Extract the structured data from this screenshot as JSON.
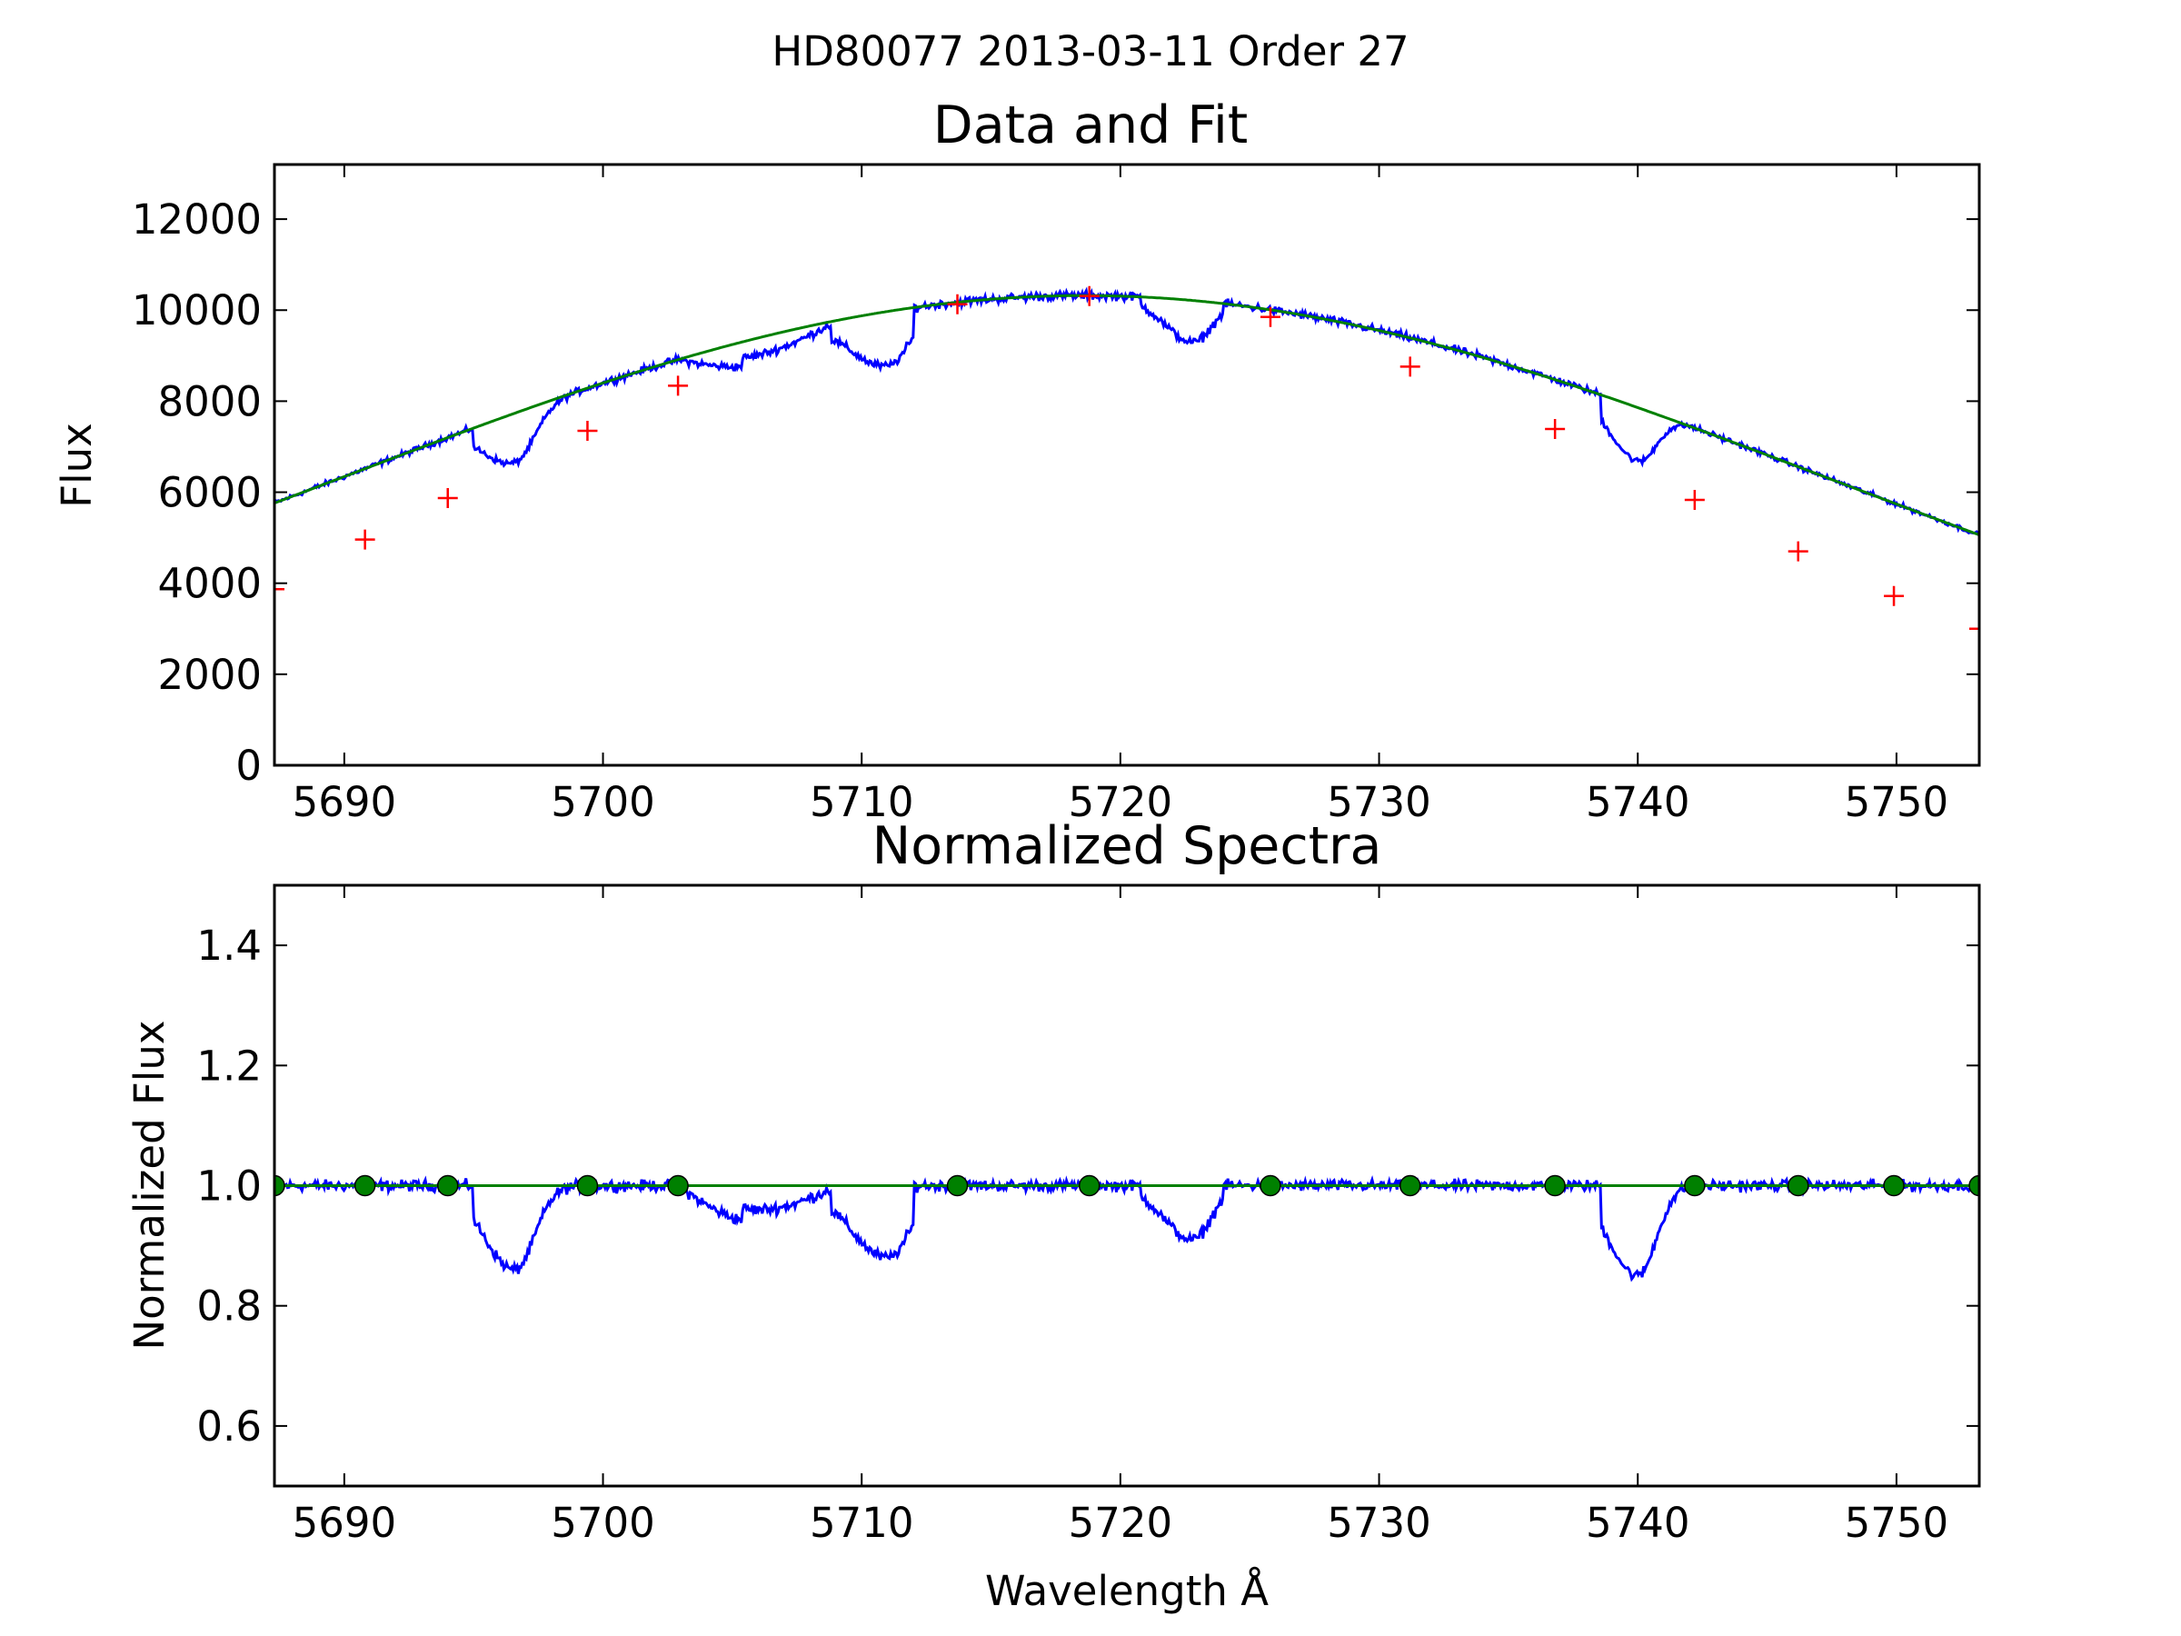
{
  "suptitle": "HD80077 2013-03-11 Order 27",
  "colors": {
    "data": "#0000ff",
    "fit": "#008000",
    "marker": "#ff0000",
    "point_fill": "#008000"
  },
  "chart_data": [
    {
      "type": "line",
      "title": "Data and Fit",
      "xlabel": "",
      "ylabel": "Flux",
      "xlim": [
        5687.3,
        5753.2
      ],
      "ylim": [
        0,
        13200
      ],
      "xticks": [
        5690,
        5700,
        5710,
        5720,
        5730,
        5740,
        5750
      ],
      "yticks": [
        0,
        2000,
        4000,
        6000,
        8000,
        10000,
        12000
      ],
      "grid": false,
      "fit_peak": {
        "x": 5718.6,
        "y": 10320
      },
      "absorption_lines": [
        {
          "center": 5696.6,
          "width": 0.75,
          "depth": 0.14,
          "left_extent": 1.6,
          "right_extent": 3.0
        },
        {
          "center": 5711.0,
          "width": 0.9,
          "depth": 0.12,
          "left_extent": 2.2,
          "right_extent": 1.0
        },
        {
          "center": 5722.8,
          "width": 0.7,
          "depth": 0.09,
          "left_extent": 2.0,
          "right_extent": 1.2
        },
        {
          "center": 5740.0,
          "width": 0.7,
          "depth": 0.15,
          "left_extent": 1.4,
          "right_extent": 1.8
        }
      ],
      "broad_depression": {
        "from": 5702.9,
        "to": 5710.0,
        "depth": 0.05
      },
      "series": [
        {
          "name": "data",
          "kind": "line"
        },
        {
          "name": "fit",
          "kind": "line"
        },
        {
          "name": "continuum points",
          "kind": "markers",
          "marker": "+",
          "x": [
            5687.3,
            5690.8,
            5694.0,
            5699.4,
            5702.9,
            5713.7,
            5718.8,
            5725.8,
            5731.2,
            5736.8,
            5742.2,
            5746.2,
            5749.9,
            5753.2
          ],
          "y": [
            3870,
            4960,
            5870,
            7350,
            8340,
            10130,
            10310,
            9850,
            8760,
            7390,
            5830,
            4700,
            3720,
            3000
          ]
        }
      ]
    },
    {
      "type": "line",
      "title": "Normalized Spectra",
      "xlabel": "Wavelength Å",
      "ylabel": "Normalized Flux",
      "xlim": [
        5687.3,
        5753.2
      ],
      "ylim": [
        0.5,
        1.5
      ],
      "xticks": [
        5690,
        5700,
        5710,
        5720,
        5730,
        5740,
        5750
      ],
      "yticks": [
        0.6,
        0.8,
        1.0,
        1.2,
        1.4
      ],
      "ytick_labels": [
        "0.6",
        "0.8",
        "1.0",
        "1.2",
        "1.4"
      ],
      "grid": false,
      "minima": [
        {
          "x": 5696.6,
          "y": 0.84
        },
        {
          "x": 5711.0,
          "y": 0.87
        },
        {
          "x": 5722.8,
          "y": 0.9
        },
        {
          "x": 5740.0,
          "y": 0.83
        }
      ],
      "series": [
        {
          "name": "normalized data",
          "kind": "line"
        },
        {
          "name": "unity",
          "kind": "line",
          "y": 1.0
        },
        {
          "name": "continuum points",
          "kind": "markers",
          "marker": "o",
          "x": [
            5687.3,
            5690.8,
            5694.0,
            5699.4,
            5702.9,
            5713.7,
            5718.8,
            5725.8,
            5731.2,
            5736.8,
            5742.2,
            5746.2,
            5749.9,
            5753.2
          ],
          "y": [
            1.0,
            1.0,
            1.0,
            1.0,
            1.0,
            1.0,
            1.0,
            1.0,
            1.0,
            1.0,
            1.0,
            1.0,
            1.0,
            1.0
          ]
        }
      ]
    }
  ]
}
